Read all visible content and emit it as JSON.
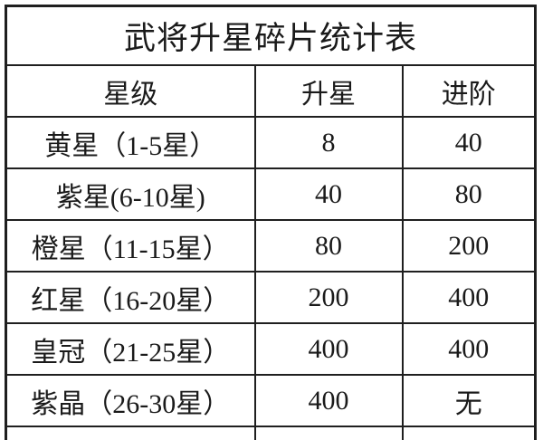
{
  "title": "武将升星碎片统计表",
  "table": {
    "headers": [
      "星级",
      "升星",
      "进阶"
    ],
    "rows": [
      [
        "黄星（1-5星）",
        "8",
        "40"
      ],
      [
        "紫星(6-10星)",
        "40",
        "80"
      ],
      [
        "橙星（11-15星）",
        "80",
        "200"
      ],
      [
        "红星（16-20星）",
        "200",
        "400"
      ],
      [
        "皇冠（21-25星）",
        "400",
        "400"
      ],
      [
        "紫晶（26-30星）",
        "400",
        "无"
      ]
    ]
  },
  "colors": {
    "border": "#1f1f1f",
    "text": "#1a1a1a",
    "background": "#ffffff"
  }
}
